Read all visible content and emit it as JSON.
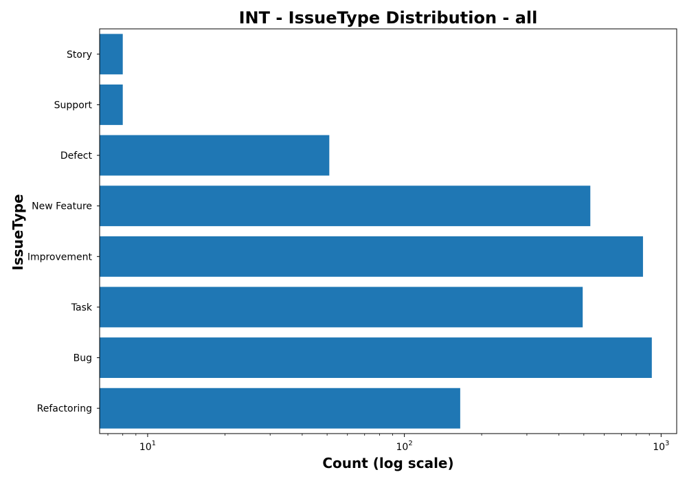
{
  "chart_data": {
    "type": "bar",
    "orientation": "horizontal",
    "title": "INT - IssueType Distribution - all",
    "xlabel": "Count (log scale)",
    "ylabel": "IssueType",
    "x_scale": "log",
    "xlim": [
      6.5,
      1150
    ],
    "x_ticks": [
      {
        "value": 10,
        "base": "10",
        "exponent": "1"
      },
      {
        "value": 100,
        "base": "10",
        "exponent": "2"
      },
      {
        "value": 1000,
        "base": "10",
        "exponent": "3"
      }
    ],
    "categories": [
      "Refactoring",
      "Bug",
      "Task",
      "Improvement",
      "New Feature",
      "Defect",
      "Support",
      "Story"
    ],
    "values": [
      165,
      920,
      495,
      850,
      530,
      51,
      8,
      8
    ],
    "bar_color": "#1f77b4",
    "grid": false,
    "legend": "none"
  }
}
